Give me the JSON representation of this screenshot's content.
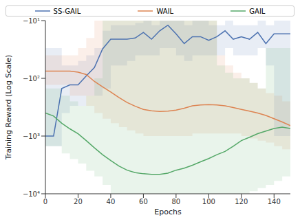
{
  "chart_data": {
    "type": "line",
    "log": "y",
    "legend": "top",
    "grid": false,
    "xlabel": "Epochs",
    "ylabel": "Training Reward (Log Scale)",
    "x": [
      0,
      5,
      10,
      15,
      20,
      25,
      30,
      35,
      40,
      45,
      50,
      55,
      60,
      65,
      70,
      75,
      80,
      85,
      90,
      95,
      100,
      105,
      110,
      115,
      120,
      125,
      130,
      135,
      140,
      145,
      150
    ],
    "xlim": [
      0,
      150
    ],
    "xticks": [
      0,
      20,
      40,
      60,
      80,
      100,
      120,
      140
    ],
    "ylim": [
      -10000,
      -10
    ],
    "yticks": [
      {
        "value": -10,
        "label": "−10¹"
      },
      {
        "value": -100,
        "label": "−10²"
      },
      {
        "value": -1000,
        "label": "−10³"
      },
      {
        "value": -10000,
        "label": "−10⁴"
      }
    ],
    "series": [
      {
        "name": "SS-GAIL",
        "color": "#4c72b0",
        "values": [
          -1000,
          -1000,
          -150,
          -130,
          -130,
          -91,
          -65,
          -31,
          -21,
          -21,
          -21,
          -20,
          -16,
          -21,
          -15,
          -12,
          -17,
          -25,
          -19,
          -19,
          -22,
          -19,
          -15,
          -21,
          -19,
          -21,
          -16,
          -25,
          -17,
          -17,
          -17
        ],
        "lower": [
          -1500,
          -1500,
          -400,
          -300,
          -300,
          -200,
          -200,
          -150,
          -60,
          -60,
          -50,
          -40,
          -40,
          -40,
          -30,
          -30,
          -40,
          -50,
          -40,
          -40,
          -40,
          -40,
          -30,
          -40,
          -40,
          -40,
          -30,
          -60,
          -1000,
          -1000,
          -60
        ],
        "upper": [
          -30,
          -30,
          -60,
          -60,
          -50,
          -40,
          -30,
          -15,
          -12,
          -12,
          -12,
          -11,
          -10,
          -12,
          -10,
          -10,
          -10,
          -12,
          -10,
          -10,
          -12,
          -12,
          -10,
          -12,
          -12,
          -12,
          -10,
          -12,
          -10,
          -10,
          -10
        ]
      },
      {
        "name": "WAIL",
        "color": "#dd8452",
        "values": [
          -75,
          -75,
          -75,
          -75,
          -78,
          -86,
          -113,
          -140,
          -172,
          -215,
          -262,
          -305,
          -345,
          -365,
          -375,
          -370,
          -355,
          -330,
          -300,
          -290,
          -285,
          -290,
          -300,
          -320,
          -345,
          -370,
          -400,
          -440,
          -500,
          -570,
          -660
        ],
        "lower": [
          -130,
          -130,
          -130,
          -200,
          -200,
          -300,
          -400,
          -500,
          -600,
          -700,
          -800,
          -900,
          -1000,
          -1000,
          -1000,
          -1000,
          -1000,
          -1000,
          -900,
          -900,
          -900,
          -900,
          -900,
          -900,
          -1000,
          -1100,
          -1200,
          -1300,
          -1500,
          -1700,
          -2000
        ],
        "upper": [
          -40,
          -40,
          -40,
          -40,
          -30,
          -20,
          -10,
          -10,
          -10,
          -10,
          -10,
          -10,
          -10,
          -10,
          -10,
          -10,
          -10,
          -10,
          -10,
          -10,
          -10,
          -40,
          -60,
          -80,
          -100,
          -120,
          -150,
          -180,
          -200,
          -250,
          -300
        ]
      },
      {
        "name": "GAIL",
        "color": "#55a868",
        "values": [
          -400,
          -450,
          -600,
          -750,
          -910,
          -1200,
          -1600,
          -2100,
          -2650,
          -3300,
          -3900,
          -4300,
          -4500,
          -4600,
          -4600,
          -4400,
          -3900,
          -3600,
          -3200,
          -2800,
          -2450,
          -2100,
          -1850,
          -1500,
          -1200,
          -1050,
          -910,
          -820,
          -740,
          -700,
          -740
        ],
        "lower": [
          -1500,
          -1500,
          -2000,
          -2500,
          -3000,
          -4000,
          -5000,
          -7000,
          -10000,
          -10000,
          -10000,
          -10000,
          -10000,
          -10000,
          -10000,
          -10000,
          -10000,
          -10000,
          -10000,
          -10000,
          -10000,
          -10000,
          -10000,
          -10000,
          -10000,
          -9000,
          -8000,
          -7000,
          -6000,
          -5000,
          -5000
        ],
        "upper": [
          -150,
          -150,
          -200,
          -250,
          -300,
          -200,
          -100,
          -10,
          -10,
          -10,
          -10,
          -10,
          -10,
          -10,
          -10,
          -10,
          -10,
          -10,
          -10,
          -10,
          -10,
          -60,
          -80,
          -100,
          -100,
          -120,
          -150,
          -30,
          -30,
          -30,
          -100
        ]
      }
    ]
  }
}
